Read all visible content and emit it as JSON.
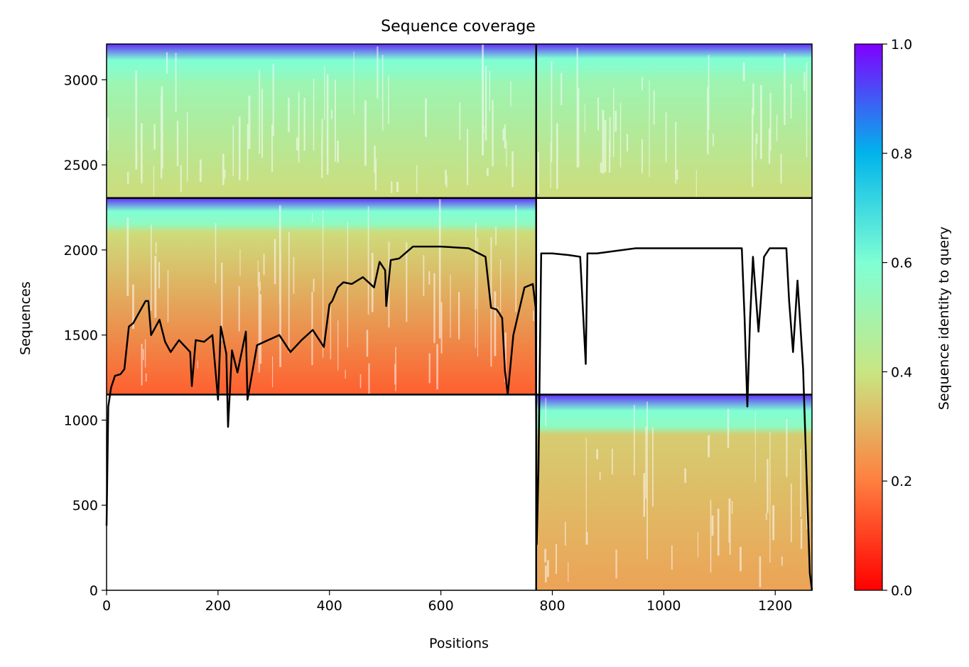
{
  "chart_data": {
    "type": "heatmap",
    "title": "Sequence coverage",
    "xlabel": "Positions",
    "ylabel": "Sequences",
    "xlim": [
      0,
      1266
    ],
    "ylim": [
      0,
      3210
    ],
    "x_ticks": [
      0,
      200,
      400,
      600,
      800,
      1000,
      1200
    ],
    "y_ticks": [
      0,
      500,
      1000,
      1500,
      2000,
      2500,
      3000
    ],
    "grid": false,
    "colorbar": {
      "label": "Sequence identity to query",
      "range": [
        0.0,
        1.0
      ],
      "ticks": [
        "0.0",
        "0.2",
        "0.4",
        "0.6",
        "0.8",
        "1.0"
      ],
      "colormap": "rainbow",
      "stops": [
        "#ff0000",
        "#ff7f3f",
        "#c8e682",
        "#7fffd4",
        "#00b4eb",
        "#8000ff"
      ]
    },
    "chain_boundary_position": 771,
    "block_row_boundaries": [
      1150,
      2305
    ],
    "blocks": [
      {
        "x": [
          771,
          1266
        ],
        "y": [
          0,
          1150
        ],
        "identity_top": 0.95,
        "identity_mid": 0.55,
        "identity_body_top": 0.35,
        "identity_bottom": 0.27,
        "mid_at": 960
      },
      {
        "x": [
          0,
          771
        ],
        "y": [
          1150,
          2305
        ],
        "identity_top": 0.95,
        "identity_mid": 0.55,
        "identity_body_top": 0.38,
        "identity_bottom": 0.15,
        "mid_at": 2150
      },
      {
        "x": [
          0,
          771
        ],
        "y": [
          2305,
          3210
        ],
        "identity_top": 0.95,
        "identity_mid": 0.55,
        "identity_body_top": 0.52,
        "identity_bottom": 0.38,
        "mid_at": 3020
      },
      {
        "x": [
          771,
          1266
        ],
        "y": [
          2305,
          3210
        ],
        "identity_top": 0.95,
        "identity_mid": 0.55,
        "identity_body_top": 0.52,
        "identity_bottom": 0.38,
        "mid_at": 3040
      }
    ],
    "coverage_line": {
      "x": [
        0,
        3,
        8,
        15,
        25,
        32,
        40,
        48,
        70,
        75,
        80,
        95,
        105,
        115,
        130,
        150,
        153,
        160,
        175,
        190,
        200,
        205,
        215,
        218,
        225,
        235,
        250,
        253,
        270,
        290,
        310,
        330,
        350,
        370,
        390,
        400,
        405,
        415,
        425,
        440,
        460,
        480,
        490,
        500,
        502,
        510,
        525,
        550,
        600,
        650,
        680,
        690,
        700,
        710,
        715,
        720,
        730,
        750,
        765,
        770,
        772,
        775,
        780,
        800,
        830,
        850,
        860,
        863,
        866,
        870,
        880,
        950,
        1000,
        1050,
        1100,
        1140,
        1145,
        1150,
        1155,
        1160,
        1170,
        1180,
        1190,
        1220,
        1225,
        1232,
        1240,
        1250,
        1255,
        1262,
        1266
      ],
      "y": [
        380,
        1080,
        1190,
        1260,
        1270,
        1300,
        1550,
        1570,
        1700,
        1700,
        1500,
        1590,
        1460,
        1400,
        1470,
        1400,
        1200,
        1470,
        1460,
        1500,
        1120,
        1550,
        1390,
        960,
        1410,
        1280,
        1520,
        1120,
        1440,
        1470,
        1500,
        1400,
        1470,
        1530,
        1430,
        1680,
        1700,
        1780,
        1810,
        1800,
        1840,
        1780,
        1930,
        1880,
        1670,
        1940,
        1950,
        2020,
        2020,
        2010,
        1960,
        1660,
        1650,
        1600,
        1290,
        1150,
        1500,
        1780,
        1800,
        1660,
        270,
        700,
        1980,
        1980,
        1970,
        1960,
        1330,
        1980,
        1980,
        1980,
        1980,
        2010,
        2010,
        2010,
        2010,
        2010,
        1600,
        1080,
        1600,
        1960,
        1520,
        1960,
        2010,
        2010,
        1700,
        1400,
        1820,
        1300,
        800,
        100,
        0
      ]
    }
  }
}
